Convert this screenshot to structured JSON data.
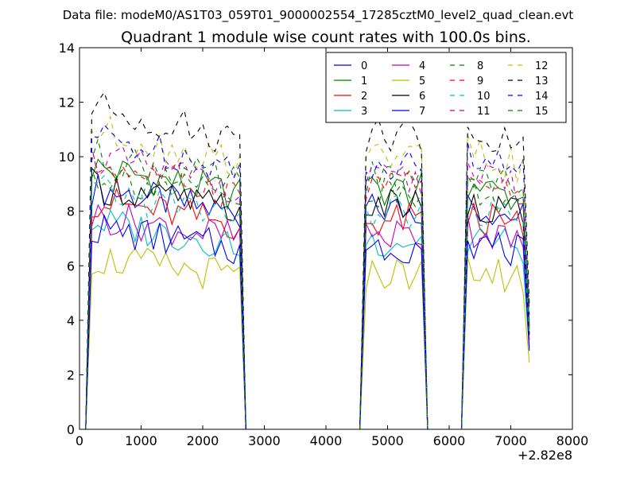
{
  "chart_data": {
    "type": "line",
    "suptitle": "Data file: modeM0/AS1T03_059T01_9000002554_17285cztM0_level2_quad_clean.evt",
    "title": "Quadrant 1 module wise count rates with 100.0s bins.",
    "xlabel": "",
    "ylabel": "",
    "x_offset_label": "+2.82e8",
    "xlim": [
      0,
      8000
    ],
    "ylim": [
      0,
      14
    ],
    "x_ticks": [
      0,
      1000,
      2000,
      3000,
      4000,
      5000,
      6000,
      7000,
      8000
    ],
    "y_ticks": [
      0,
      2,
      4,
      6,
      8,
      10,
      12,
      14
    ],
    "x_tick_labels": [
      "0",
      "1000",
      "2000",
      "3000",
      "4000",
      "5000",
      "6000",
      "7000",
      "8000"
    ],
    "y_tick_labels": [
      "0",
      "2",
      "4",
      "6",
      "8",
      "10",
      "12",
      "14"
    ],
    "legend_position": "top-right",
    "legend_columns": 4,
    "segments": [
      {
        "start": 200,
        "end": 2600,
        "zero_after": true
      },
      {
        "start": 4650,
        "end": 5550,
        "zero_after": true
      },
      {
        "start": 6300,
        "end": 7300,
        "zero_after": false
      }
    ],
    "series": [
      {
        "name": "0",
        "style": "solid",
        "color": "#0000ff",
        "level": 7.9
      },
      {
        "name": "1",
        "style": "solid",
        "color": "#008000",
        "level": 8.6
      },
      {
        "name": "2",
        "style": "solid",
        "color": "#ff0000",
        "level": 7.5
      },
      {
        "name": "3",
        "style": "solid",
        "color": "#00bfbf",
        "level": 6.8
      },
      {
        "name": "4",
        "style": "solid",
        "color": "#bf00bf",
        "level": 7.0
      },
      {
        "name": "5",
        "style": "solid",
        "color": "#bfbf00",
        "level": 5.6
      },
      {
        "name": "6",
        "style": "solid",
        "color": "#000000",
        "level": 8.0
      },
      {
        "name": "7",
        "style": "solid",
        "color": "#0000ff",
        "level": 6.6
      },
      {
        "name": "8",
        "style": "dashed",
        "color": "#008000",
        "level": 9.0
      },
      {
        "name": "9",
        "style": "dashed",
        "color": "#ff0000",
        "level": 8.7
      },
      {
        "name": "10",
        "style": "dashed",
        "color": "#00bfbf",
        "level": 7.8
      },
      {
        "name": "11",
        "style": "dashed",
        "color": "#bf00bf",
        "level": 8.9
      },
      {
        "name": "12",
        "style": "dashed",
        "color": "#bfbf00",
        "level": 9.8
      },
      {
        "name": "13",
        "style": "dashed",
        "color": "#000000",
        "level": 10.6
      },
      {
        "name": "14",
        "style": "dashed",
        "color": "#0000ff",
        "level": 9.6
      },
      {
        "name": "15",
        "style": "dashed",
        "color": "#008000",
        "level": 8.4
      }
    ]
  }
}
